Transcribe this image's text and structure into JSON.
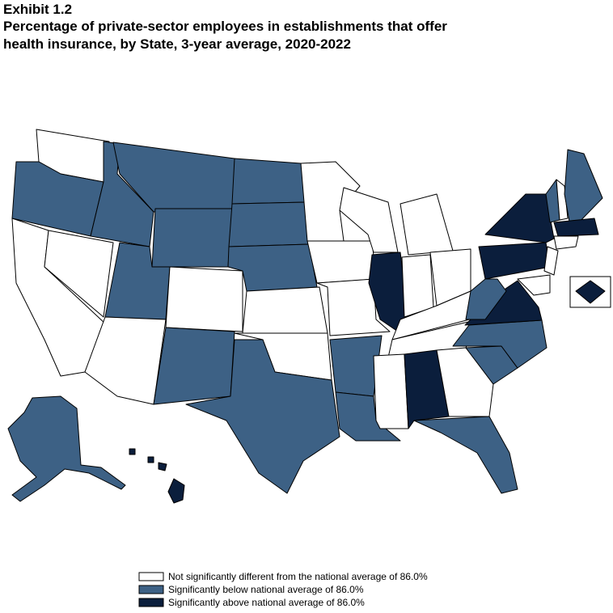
{
  "header": {
    "exhibit": "Exhibit 1.2",
    "title_lines": [
      "Percentage of private-sector employees in establishments that offer",
      "health insurance, by State, 3-year average, 2020-2022"
    ]
  },
  "legend": {
    "items": [
      {
        "label": "Not significantly different from the national average of 86.0%",
        "color": "#ffffff"
      },
      {
        "label": "Significantly below national average of 86.0%",
        "color": "#3d6185"
      },
      {
        "label": "Significantly above national average of 86.0%",
        "color": "#0b1e3c"
      }
    ]
  }
}
